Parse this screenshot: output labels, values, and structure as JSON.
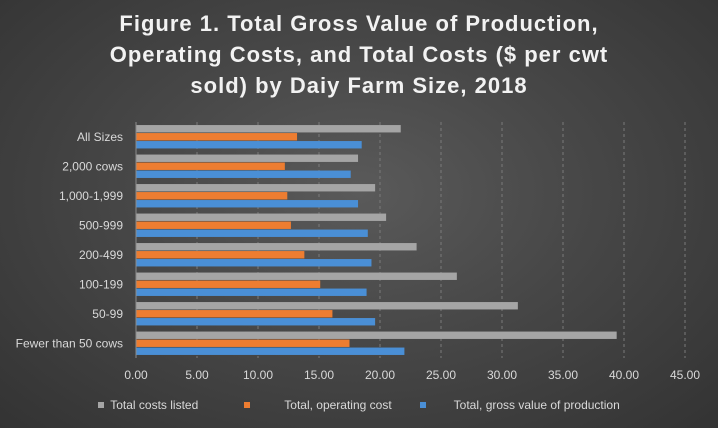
{
  "chart_data": {
    "type": "bar",
    "orientation": "horizontal",
    "title_lines": [
      "Figure 1. Total Gross Value of Production,",
      "Operating Costs, and Total Costs ($ per cwt",
      "sold) by Daiy Farm Size, 2018"
    ],
    "categories": [
      "All Sizes",
      "2,000 cows",
      "1,000-1,999",
      "500-999",
      "200-499",
      "100-199",
      "50-99",
      "Fewer than 50 cows"
    ],
    "series": [
      {
        "name": "Total costs listed",
        "color": "#a5a5a5",
        "values": [
          21.7,
          18.2,
          19.6,
          20.5,
          23.0,
          26.3,
          31.3,
          39.4
        ]
      },
      {
        "name": "Total, operating cost",
        "color": "#ed7d31",
        "values": [
          13.2,
          12.2,
          12.4,
          12.7,
          13.8,
          15.1,
          16.1,
          17.5
        ]
      },
      {
        "name": "Total, gross value of production",
        "color": "#4a8fd6",
        "values": [
          18.5,
          17.6,
          18.2,
          19.0,
          19.3,
          18.9,
          19.6,
          22.0
        ]
      }
    ],
    "xlim": [
      0,
      45
    ],
    "x_ticks": [
      "0.00",
      "5.00",
      "10.00",
      "15.00",
      "20.00",
      "25.00",
      "30.00",
      "35.00",
      "40.00",
      "45.00"
    ],
    "x_tick_values": [
      0,
      5,
      10,
      15,
      20,
      25,
      30,
      35,
      40,
      45
    ],
    "grid": "vertical dashed",
    "legend_position": "bottom"
  }
}
